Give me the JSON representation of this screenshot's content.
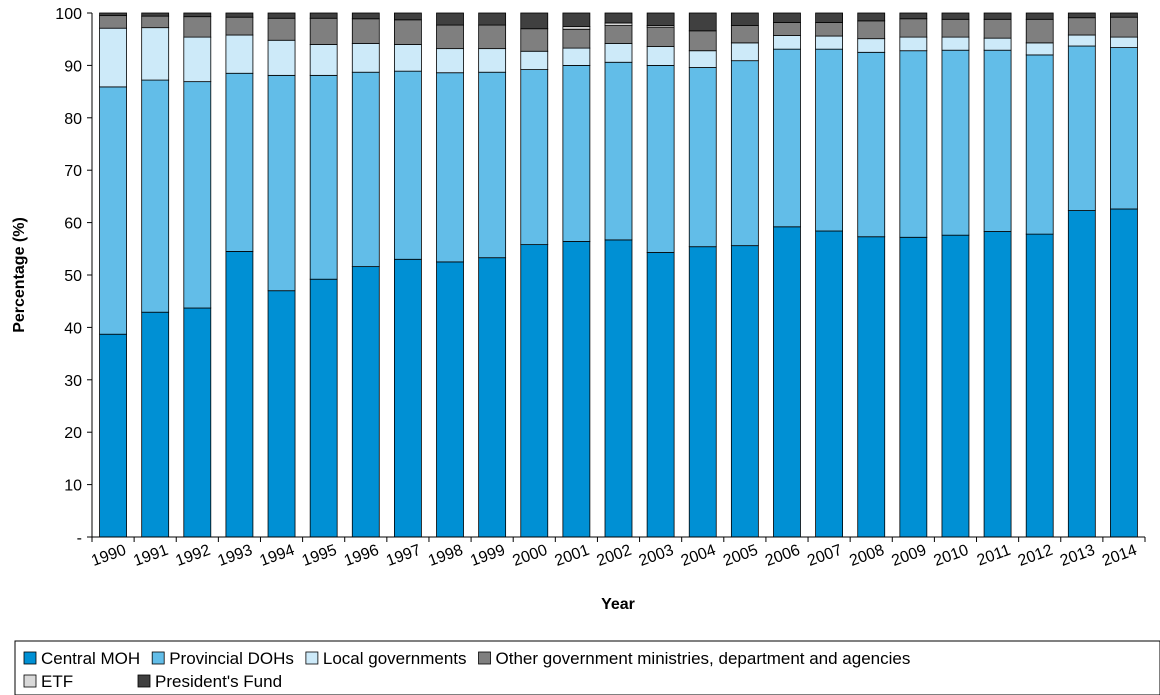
{
  "chart_data": {
    "type": "bar",
    "stacked": true,
    "title": "",
    "xlabel": "Year",
    "ylabel": "Percentage (%)",
    "ylim": [
      0,
      100
    ],
    "ytick_labels": [
      "-",
      "10",
      "20",
      "30",
      "40",
      "50",
      "60",
      "70",
      "80",
      "90",
      "100"
    ],
    "grid": false,
    "legend_position": "bottom",
    "categories": [
      "1990",
      "1991",
      "1992",
      "1993",
      "1994",
      "1995",
      "1996",
      "1997",
      "1998",
      "1999",
      "2000",
      "2001",
      "2002",
      "2003",
      "2004",
      "2005",
      "2006",
      "2007",
      "2008",
      "2009",
      "2010",
      "2011",
      "2012",
      "2013",
      "2014"
    ],
    "series": [
      {
        "name": "Central MOH",
        "color": "#0090d4",
        "values": [
          38.7,
          42.9,
          43.7,
          54.5,
          47.0,
          49.2,
          51.6,
          53.0,
          52.5,
          53.3,
          55.8,
          56.4,
          56.7,
          54.3,
          55.4,
          55.6,
          59.2,
          58.4,
          57.3,
          57.2,
          57.6,
          58.3,
          57.8,
          62.3,
          62.6
        ]
      },
      {
        "name": "Provincial DOHs",
        "color": "#62bde8",
        "values": [
          47.2,
          44.3,
          43.2,
          34.0,
          41.1,
          38.9,
          37.1,
          35.9,
          36.1,
          35.4,
          33.4,
          33.6,
          33.9,
          35.7,
          34.2,
          35.3,
          33.9,
          34.7,
          35.2,
          35.6,
          35.3,
          34.6,
          34.2,
          31.4,
          30.8
        ]
      },
      {
        "name": "Local governments",
        "color": "#cdeaf9",
        "values": [
          11.2,
          10.0,
          8.5,
          7.3,
          6.7,
          5.9,
          5.5,
          5.1,
          4.6,
          4.5,
          3.5,
          3.3,
          3.6,
          3.6,
          3.2,
          3.4,
          2.6,
          2.5,
          2.6,
          2.6,
          2.5,
          2.3,
          2.3,
          2.1,
          2.0
        ]
      },
      {
        "name": "Other government ministries, department and agencies",
        "color": "#7f7f7f",
        "values": [
          2.4,
          2.2,
          3.9,
          3.4,
          4.2,
          5.0,
          4.7,
          4.7,
          4.5,
          4.5,
          4.3,
          3.6,
          3.4,
          3.7,
          3.8,
          3.3,
          2.5,
          2.6,
          3.4,
          3.5,
          3.4,
          3.6,
          4.5,
          3.3,
          3.8
        ]
      },
      {
        "name": "ETF",
        "color": "#d9d9d9",
        "values": [
          0,
          0,
          0,
          0,
          0,
          0,
          0,
          0,
          0,
          0,
          0,
          0.5,
          0.5,
          0.3,
          0,
          0,
          0,
          0,
          0,
          0,
          0,
          0,
          0,
          0,
          0
        ]
      },
      {
        "name": "President's Fund",
        "color": "#404040",
        "values": [
          0.5,
          0.6,
          0.7,
          0.8,
          1.0,
          1.0,
          1.1,
          1.3,
          2.3,
          2.3,
          3.0,
          2.6,
          1.9,
          2.4,
          3.4,
          2.4,
          1.8,
          1.8,
          1.5,
          1.1,
          1.2,
          1.2,
          1.2,
          0.9,
          0.8
        ]
      }
    ]
  }
}
